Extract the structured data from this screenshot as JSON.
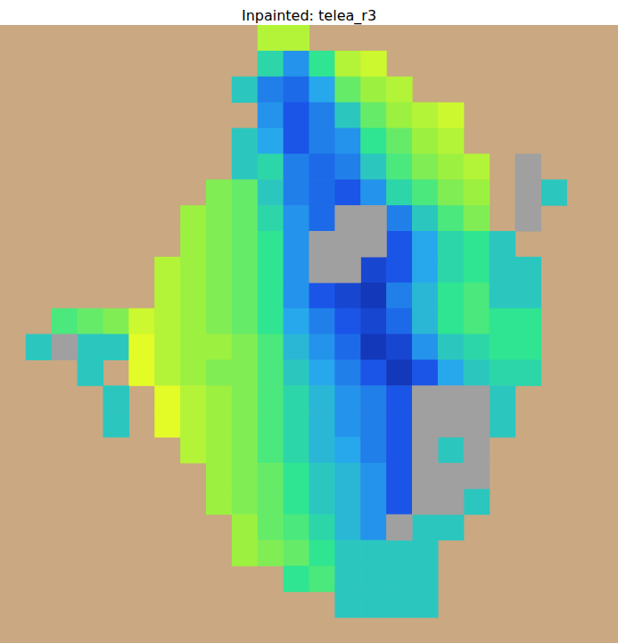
{
  "chart_data": {
    "type": "heatmap",
    "title": "Inpainted: telea_r3",
    "xlim": [
      0,
      24
    ],
    "ylim": [
      0,
      24
    ],
    "value_range": [
      0,
      1
    ],
    "tick_labels": false,
    "cells": [
      [
        null,
        null,
        null,
        null,
        null,
        null,
        null,
        null,
        null,
        null,
        0.85,
        0.85,
        null,
        null,
        null,
        null,
        null,
        null,
        null,
        null,
        null,
        null,
        null,
        null
      ],
      [
        null,
        null,
        null,
        null,
        null,
        null,
        null,
        null,
        null,
        null,
        0.55,
        0.35,
        0.6,
        0.85,
        0.9,
        null,
        null,
        null,
        null,
        null,
        null,
        null,
        null,
        null
      ],
      [
        null,
        null,
        null,
        null,
        null,
        null,
        null,
        null,
        null,
        0.5,
        0.3,
        0.25,
        0.4,
        0.7,
        0.8,
        0.85,
        null,
        null,
        null,
        null,
        null,
        null,
        null,
        null
      ],
      [
        null,
        null,
        null,
        null,
        null,
        null,
        null,
        null,
        null,
        null,
        0.35,
        0.2,
        0.3,
        0.5,
        0.7,
        0.8,
        0.85,
        0.9,
        null,
        null,
        null,
        null,
        null,
        null
      ],
      [
        null,
        null,
        null,
        null,
        null,
        null,
        null,
        null,
        null,
        0.5,
        0.4,
        0.2,
        0.3,
        0.35,
        0.6,
        0.7,
        0.8,
        0.85,
        null,
        null,
        null,
        null,
        null,
        null
      ],
      [
        null,
        null,
        null,
        null,
        null,
        null,
        null,
        null,
        null,
        0.5,
        0.55,
        0.3,
        0.25,
        0.3,
        0.5,
        0.65,
        0.75,
        0.8,
        0.85,
        null,
        null,
        null,
        null,
        null
      ],
      [
        null,
        null,
        null,
        null,
        null,
        null,
        null,
        null,
        0.75,
        0.7,
        0.5,
        0.3,
        0.25,
        0.2,
        0.35,
        0.55,
        0.65,
        0.75,
        0.8,
        null,
        null,
        0.5,
        null,
        null
      ],
      [
        null,
        null,
        null,
        null,
        null,
        null,
        null,
        0.8,
        0.75,
        0.7,
        0.55,
        0.35,
        0.25,
        null,
        null,
        0.3,
        0.5,
        0.65,
        0.75,
        null,
        null,
        null,
        null,
        null
      ],
      [
        null,
        null,
        null,
        null,
        null,
        null,
        null,
        0.8,
        0.75,
        0.7,
        0.6,
        0.35,
        null,
        null,
        null,
        0.2,
        0.4,
        0.55,
        0.6,
        0.5,
        null,
        null,
        null,
        null
      ],
      [
        null,
        null,
        null,
        null,
        null,
        null,
        0.85,
        0.8,
        0.75,
        0.7,
        0.6,
        0.35,
        null,
        null,
        0.15,
        0.2,
        0.4,
        0.55,
        0.6,
        0.5,
        0.5,
        null,
        null,
        null
      ],
      [
        null,
        null,
        null,
        null,
        null,
        null,
        0.85,
        0.8,
        0.75,
        0.7,
        0.6,
        0.35,
        0.2,
        0.15,
        0.1,
        0.3,
        0.45,
        0.6,
        0.65,
        0.5,
        0.5,
        null,
        null,
        null
      ],
      [
        null,
        null,
        0.65,
        0.7,
        0.75,
        0.9,
        0.85,
        0.8,
        0.75,
        0.7,
        0.6,
        0.4,
        0.3,
        0.2,
        0.15,
        0.25,
        0.45,
        0.6,
        0.65,
        0.6,
        0.6,
        null,
        null,
        null
      ],
      [
        null,
        0.5,
        null,
        0.5,
        0.5,
        0.95,
        0.85,
        0.8,
        0.8,
        0.75,
        0.65,
        0.45,
        0.35,
        0.25,
        0.1,
        0.15,
        0.35,
        0.5,
        0.55,
        0.6,
        0.6,
        null,
        null,
        null
      ],
      [
        null,
        null,
        null,
        0.5,
        null,
        0.95,
        0.85,
        0.8,
        0.75,
        0.75,
        0.65,
        0.5,
        0.4,
        0.3,
        0.2,
        0.1,
        0.2,
        0.4,
        0.5,
        0.55,
        0.55,
        null,
        null,
        null
      ],
      [
        null,
        null,
        null,
        null,
        0.5,
        null,
        0.95,
        0.85,
        0.8,
        0.75,
        0.65,
        0.55,
        0.45,
        0.35,
        0.3,
        0.2,
        null,
        null,
        null,
        0.5,
        null,
        null,
        null,
        null
      ],
      [
        null,
        null,
        null,
        null,
        0.5,
        null,
        0.95,
        0.85,
        0.8,
        0.75,
        0.65,
        0.55,
        0.45,
        0.35,
        0.3,
        0.2,
        null,
        null,
        null,
        0.5,
        null,
        null,
        null,
        null
      ],
      [
        null,
        null,
        null,
        null,
        null,
        null,
        null,
        0.85,
        0.8,
        0.75,
        0.65,
        0.55,
        0.45,
        0.4,
        0.3,
        0.2,
        null,
        0.5,
        null,
        null,
        null,
        null,
        null,
        null
      ],
      [
        null,
        null,
        null,
        null,
        null,
        null,
        null,
        null,
        0.8,
        0.75,
        0.7,
        0.6,
        0.5,
        0.45,
        0.35,
        0.2,
        null,
        null,
        null,
        null,
        null,
        null,
        null,
        null
      ],
      [
        null,
        null,
        null,
        null,
        null,
        null,
        null,
        null,
        0.8,
        0.75,
        0.7,
        0.6,
        0.5,
        0.45,
        0.35,
        0.2,
        null,
        null,
        0.5,
        null,
        null,
        null,
        null,
        null
      ],
      [
        null,
        null,
        null,
        null,
        null,
        null,
        null,
        null,
        null,
        0.8,
        0.7,
        0.65,
        0.55,
        0.45,
        0.35,
        null,
        0.5,
        0.5,
        null,
        null,
        null,
        null,
        null,
        null
      ],
      [
        null,
        null,
        null,
        null,
        null,
        null,
        null,
        null,
        null,
        0.8,
        0.75,
        0.7,
        0.6,
        0.5,
        0.5,
        0.5,
        0.5,
        null,
        null,
        null,
        null,
        null,
        null,
        null
      ],
      [
        null,
        null,
        null,
        null,
        null,
        null,
        null,
        null,
        null,
        null,
        null,
        0.6,
        0.65,
        0.5,
        0.5,
        0.5,
        0.5,
        null,
        null,
        null,
        null,
        null,
        null,
        null
      ],
      [
        null,
        null,
        null,
        null,
        null,
        null,
        null,
        null,
        null,
        null,
        null,
        null,
        null,
        0.5,
        0.5,
        0.5,
        0.5,
        null,
        null,
        null,
        null,
        null,
        null,
        null
      ],
      [
        null,
        null,
        null,
        null,
        null,
        null,
        null,
        null,
        null,
        null,
        null,
        null,
        null,
        null,
        null,
        null,
        null,
        null,
        null,
        null,
        null,
        null,
        null,
        null
      ]
    ],
    "no_data_cells": [
      [
        20,
        5
      ],
      [
        20,
        6
      ],
      [
        13,
        7
      ],
      [
        14,
        7
      ],
      [
        20,
        7
      ],
      [
        12,
        8
      ],
      [
        13,
        8
      ],
      [
        14,
        8
      ],
      [
        12,
        9
      ],
      [
        13,
        9
      ],
      [
        2,
        12
      ],
      [
        16,
        14
      ],
      [
        17,
        14
      ],
      [
        18,
        14
      ],
      [
        16,
        15
      ],
      [
        17,
        15
      ],
      [
        18,
        15
      ],
      [
        16,
        16
      ],
      [
        18,
        16
      ],
      [
        16,
        17
      ],
      [
        17,
        17
      ],
      [
        18,
        17
      ],
      [
        16,
        18
      ],
      [
        17,
        18
      ],
      [
        15,
        19
      ]
    ]
  }
}
